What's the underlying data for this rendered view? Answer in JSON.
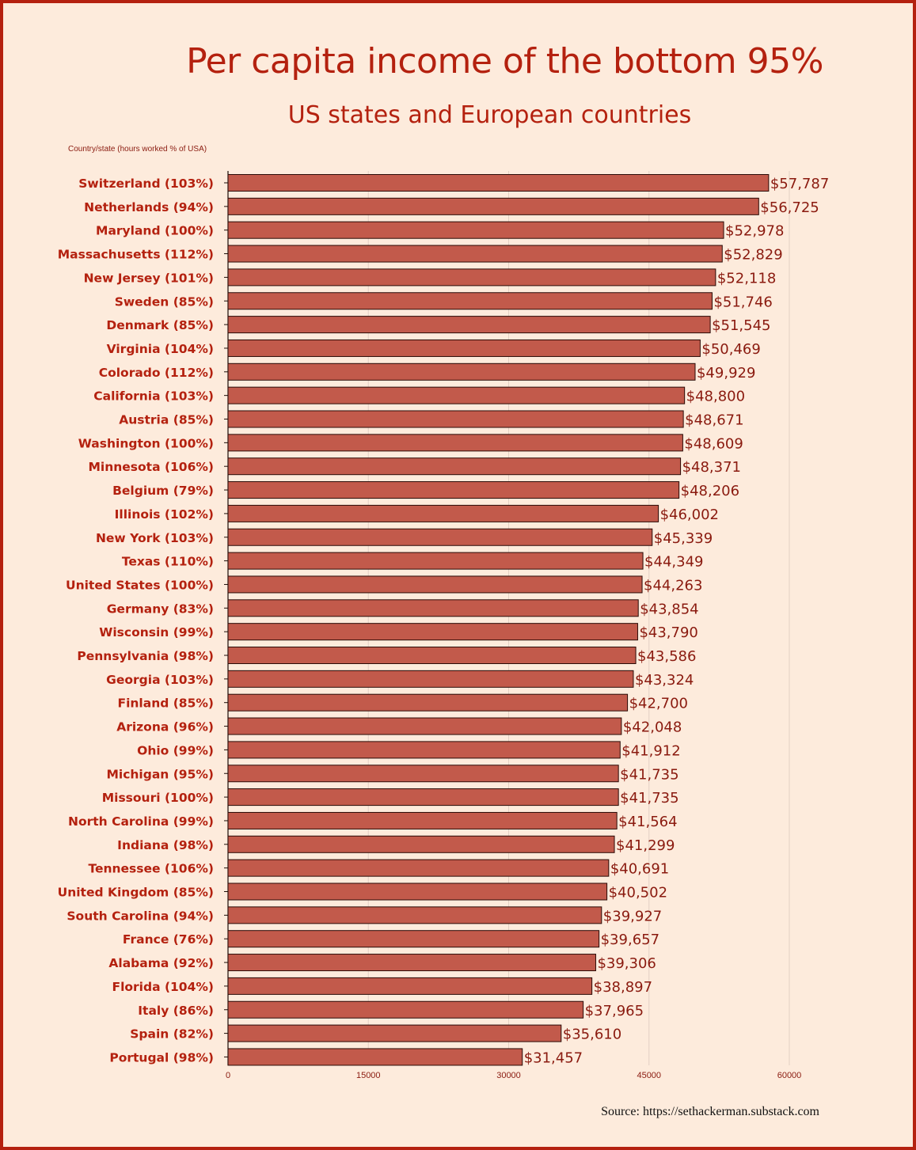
{
  "chart_data": {
    "type": "bar",
    "orientation": "horizontal",
    "title": "Per capita income of the bottom 95%",
    "subtitle": "US states and European countries",
    "ylabel": "Country/state  (hours worked % of USA)",
    "xlabel": "",
    "xlim": [
      0,
      60000
    ],
    "xticks": [
      "0",
      "15000",
      "30000",
      "45000",
      "60000"
    ],
    "grid": true,
    "bar_color": "#c25a4b",
    "bar_edge_color": "#2a0a06",
    "accent_color": "#b4210f",
    "categories": [
      "Switzerland (103%)",
      "Netherlands (94%)",
      "Maryland (100%)",
      "Massachusetts (112%)",
      "New Jersey (101%)",
      "Sweden (85%)",
      "Denmark (85%)",
      "Virginia (104%)",
      "Colorado (112%)",
      "California (103%)",
      "Austria (85%)",
      "Washington (100%)",
      "Minnesota (106%)",
      "Belgium (79%)",
      "Illinois (102%)",
      "New York (103%)",
      "Texas (110%)",
      "United States (100%)",
      "Germany (83%)",
      "Wisconsin (99%)",
      "Pennsylvania (98%)",
      "Georgia (103%)",
      "Finland (85%)",
      "Arizona (96%)",
      "Ohio (99%)",
      "Michigan (95%)",
      "Missouri (100%)",
      "North Carolina (99%)",
      "Indiana (98%)",
      "Tennessee (106%)",
      "United Kingdom (85%)",
      "South Carolina (94%)",
      "France (76%)",
      "Alabama (92%)",
      "Florida (104%)",
      "Italy (86%)",
      "Spain (82%)",
      "Portugal (98%)"
    ],
    "values": [
      57787,
      56725,
      52978,
      52829,
      52118,
      51746,
      51545,
      50469,
      49929,
      48800,
      48671,
      48609,
      48371,
      48206,
      46002,
      45339,
      44349,
      44263,
      43854,
      43790,
      43586,
      43324,
      42700,
      42048,
      41912,
      41735,
      41735,
      41564,
      41299,
      40691,
      40502,
      39927,
      39657,
      39306,
      38897,
      37965,
      35610,
      31457
    ],
    "value_labels": [
      "$57,787",
      "$56,725",
      "$52,978",
      "$52,829",
      "$52,118",
      "$51,746",
      "$51,545",
      "$50,469",
      "$49,929",
      "$48,800",
      "$48,671",
      "$48,609",
      "$48,371",
      "$48,206",
      "$46,002",
      "$45,339",
      "$44,349",
      "$44,263",
      "$43,854",
      "$43,790",
      "$43,586",
      "$43,324",
      "$42,700",
      "$42,048",
      "$41,912",
      "$41,735",
      "$41,735",
      "$41,564",
      "$41,299",
      "$40,691",
      "$40,502",
      "$39,927",
      "$39,657",
      "$39,306",
      "$38,897",
      "$37,965",
      "$35,610",
      "$31,457"
    ]
  },
  "source": "Source: https://sethackerman.substack.com"
}
